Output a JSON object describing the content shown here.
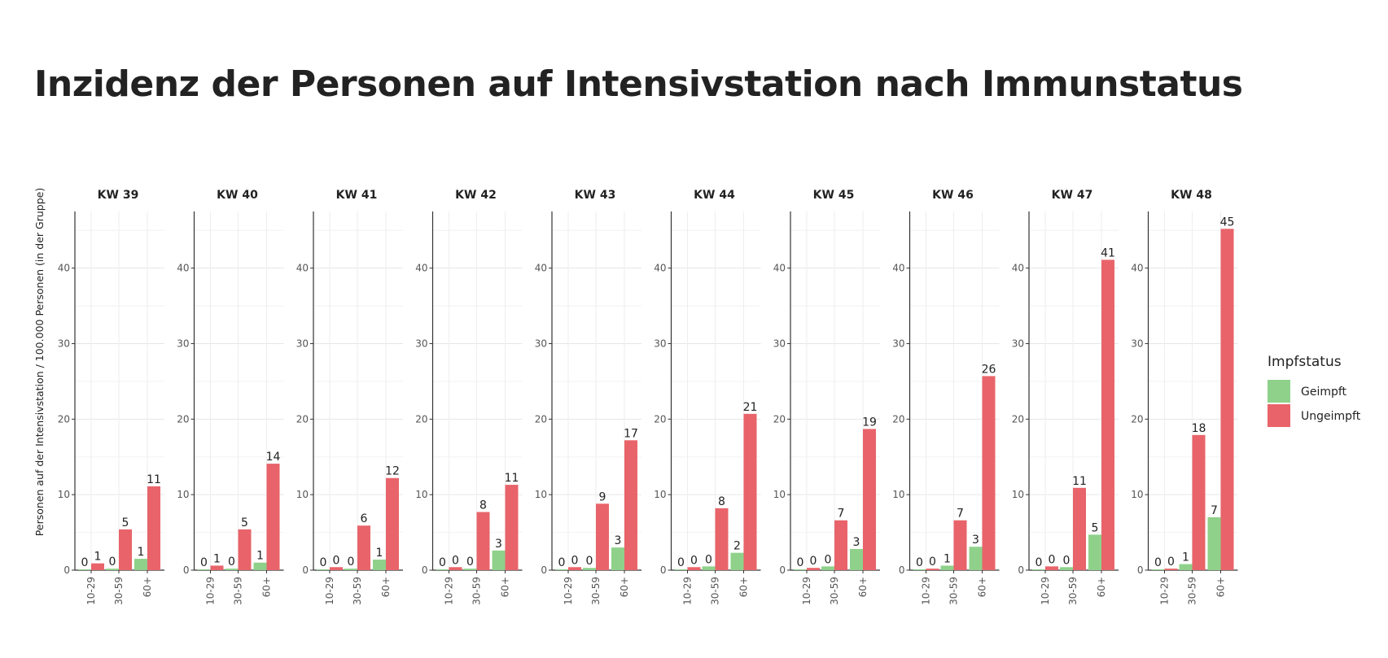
{
  "title": "Inzidenz der Personen auf Intensivstation nach Immunstatus",
  "chart_data": {
    "type": "bar",
    "ylabel": "Personen auf der Intensivstation / 100.000 Personen (in der Gruppe)",
    "ylim": [
      0,
      47.5
    ],
    "yticks": [
      "0",
      "10",
      "20",
      "30",
      "40"
    ],
    "categories": [
      "10-29",
      "30-59",
      "60+"
    ],
    "legend": {
      "title": "Impfstatus",
      "position": "right",
      "items": [
        {
          "label": "Geimpft",
          "color": "#8fd18b"
        },
        {
          "label": "Ungeimpft",
          "color": "#e8646a"
        }
      ]
    },
    "panels": [
      {
        "title": "KW 39",
        "geimpft": {
          "values": [
            0.1,
            0.2,
            1.5
          ],
          "labels": [
            "0",
            "0",
            "1"
          ]
        },
        "ungeimpft": {
          "values": [
            0.9,
            5.4,
            11.1
          ],
          "labels": [
            "1",
            "5",
            "11"
          ]
        }
      },
      {
        "title": "KW 40",
        "geimpft": {
          "values": [
            0.1,
            0.2,
            1.0
          ],
          "labels": [
            "0",
            "0",
            "1"
          ]
        },
        "ungeimpft": {
          "values": [
            0.6,
            5.4,
            14.1
          ],
          "labels": [
            "1",
            "5",
            "14"
          ]
        }
      },
      {
        "title": "KW 41",
        "geimpft": {
          "values": [
            0.1,
            0.2,
            1.4
          ],
          "labels": [
            "0",
            "0",
            "1"
          ]
        },
        "ungeimpft": {
          "values": [
            0.4,
            5.9,
            12.2
          ],
          "labels": [
            "0",
            "6",
            "12"
          ]
        }
      },
      {
        "title": "KW 42",
        "geimpft": {
          "values": [
            0.1,
            0.2,
            2.6
          ],
          "labels": [
            "0",
            "0",
            "3"
          ]
        },
        "ungeimpft": {
          "values": [
            0.4,
            7.7,
            11.3
          ],
          "labels": [
            "0",
            "8",
            "11"
          ]
        }
      },
      {
        "title": "KW 43",
        "geimpft": {
          "values": [
            0.1,
            0.3,
            3.0
          ],
          "labels": [
            "0",
            "0",
            "3"
          ]
        },
        "ungeimpft": {
          "values": [
            0.4,
            8.8,
            17.2
          ],
          "labels": [
            "0",
            "9",
            "17"
          ]
        }
      },
      {
        "title": "KW 44",
        "geimpft": {
          "values": [
            0.1,
            0.5,
            2.3
          ],
          "labels": [
            "0",
            "0",
            "2"
          ]
        },
        "ungeimpft": {
          "values": [
            0.4,
            8.2,
            20.7
          ],
          "labels": [
            "0",
            "8",
            "21"
          ]
        }
      },
      {
        "title": "KW 45",
        "geimpft": {
          "values": [
            0.1,
            0.5,
            2.8
          ],
          "labels": [
            "0",
            "0",
            "3"
          ]
        },
        "ungeimpft": {
          "values": [
            0.3,
            6.6,
            18.7
          ],
          "labels": [
            "0",
            "7",
            "19"
          ]
        }
      },
      {
        "title": "KW 46",
        "geimpft": {
          "values": [
            0.1,
            0.6,
            3.1
          ],
          "labels": [
            "0",
            "1",
            "3"
          ]
        },
        "ungeimpft": {
          "values": [
            0.2,
            6.6,
            25.7
          ],
          "labels": [
            "0",
            "7",
            "26"
          ]
        }
      },
      {
        "title": "KW 47",
        "geimpft": {
          "values": [
            0.1,
            0.4,
            4.7
          ],
          "labels": [
            "0",
            "0",
            "5"
          ]
        },
        "ungeimpft": {
          "values": [
            0.5,
            10.9,
            41.1
          ],
          "labels": [
            "0",
            "11",
            "41"
          ]
        }
      },
      {
        "title": "KW 48",
        "geimpft": {
          "values": [
            0.1,
            0.8,
            7.0
          ],
          "labels": [
            "0",
            "1",
            "7"
          ]
        },
        "ungeimpft": {
          "values": [
            0.2,
            17.9,
            45.2
          ],
          "labels": [
            "0",
            "18",
            "45"
          ]
        }
      }
    ]
  }
}
